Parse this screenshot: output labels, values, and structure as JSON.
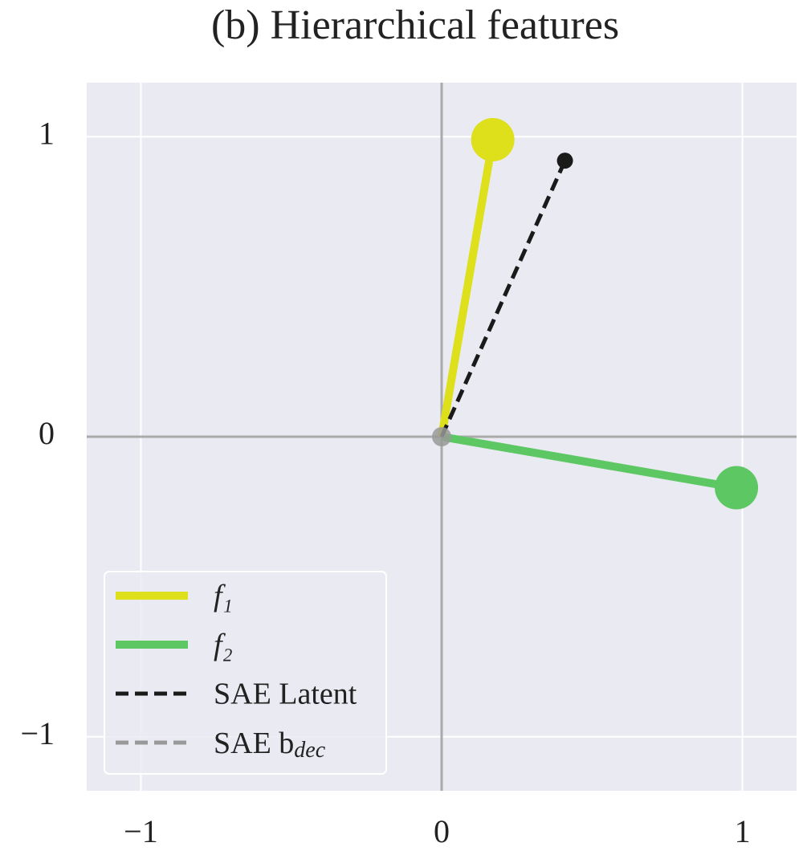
{
  "chart_data": {
    "type": "vector",
    "title": "(b) Hierarchical features",
    "xlim": [
      -1.18,
      1.18
    ],
    "ylim": [
      -1.18,
      1.18
    ],
    "xticks": [
      {
        "value": -1,
        "label": "−1"
      },
      0,
      1
    ],
    "yticks": [
      {
        "value": -1,
        "label": "−1"
      },
      0,
      1
    ],
    "grid": true,
    "legend": "lower left",
    "series": [
      {
        "name": "f₁",
        "color": "#dde01b",
        "dash": "solid",
        "x": [
          0,
          0.17
        ],
        "values": [
          0,
          0.99
        ]
      },
      {
        "name": "f₂",
        "color": "#5dc863",
        "dash": "solid",
        "x": [
          0,
          0.98
        ],
        "values": [
          0,
          -0.17
        ]
      },
      {
        "name": "SAE Latent",
        "color": "#1a1a1a",
        "dash": "dashed",
        "x": [
          0,
          0.41
        ],
        "values": [
          0,
          0.92
        ]
      },
      {
        "name": "SAE b_dec",
        "color": "#999999",
        "dash": "dashed",
        "x": [
          0,
          0
        ],
        "values": [
          0,
          0
        ]
      }
    ]
  }
}
